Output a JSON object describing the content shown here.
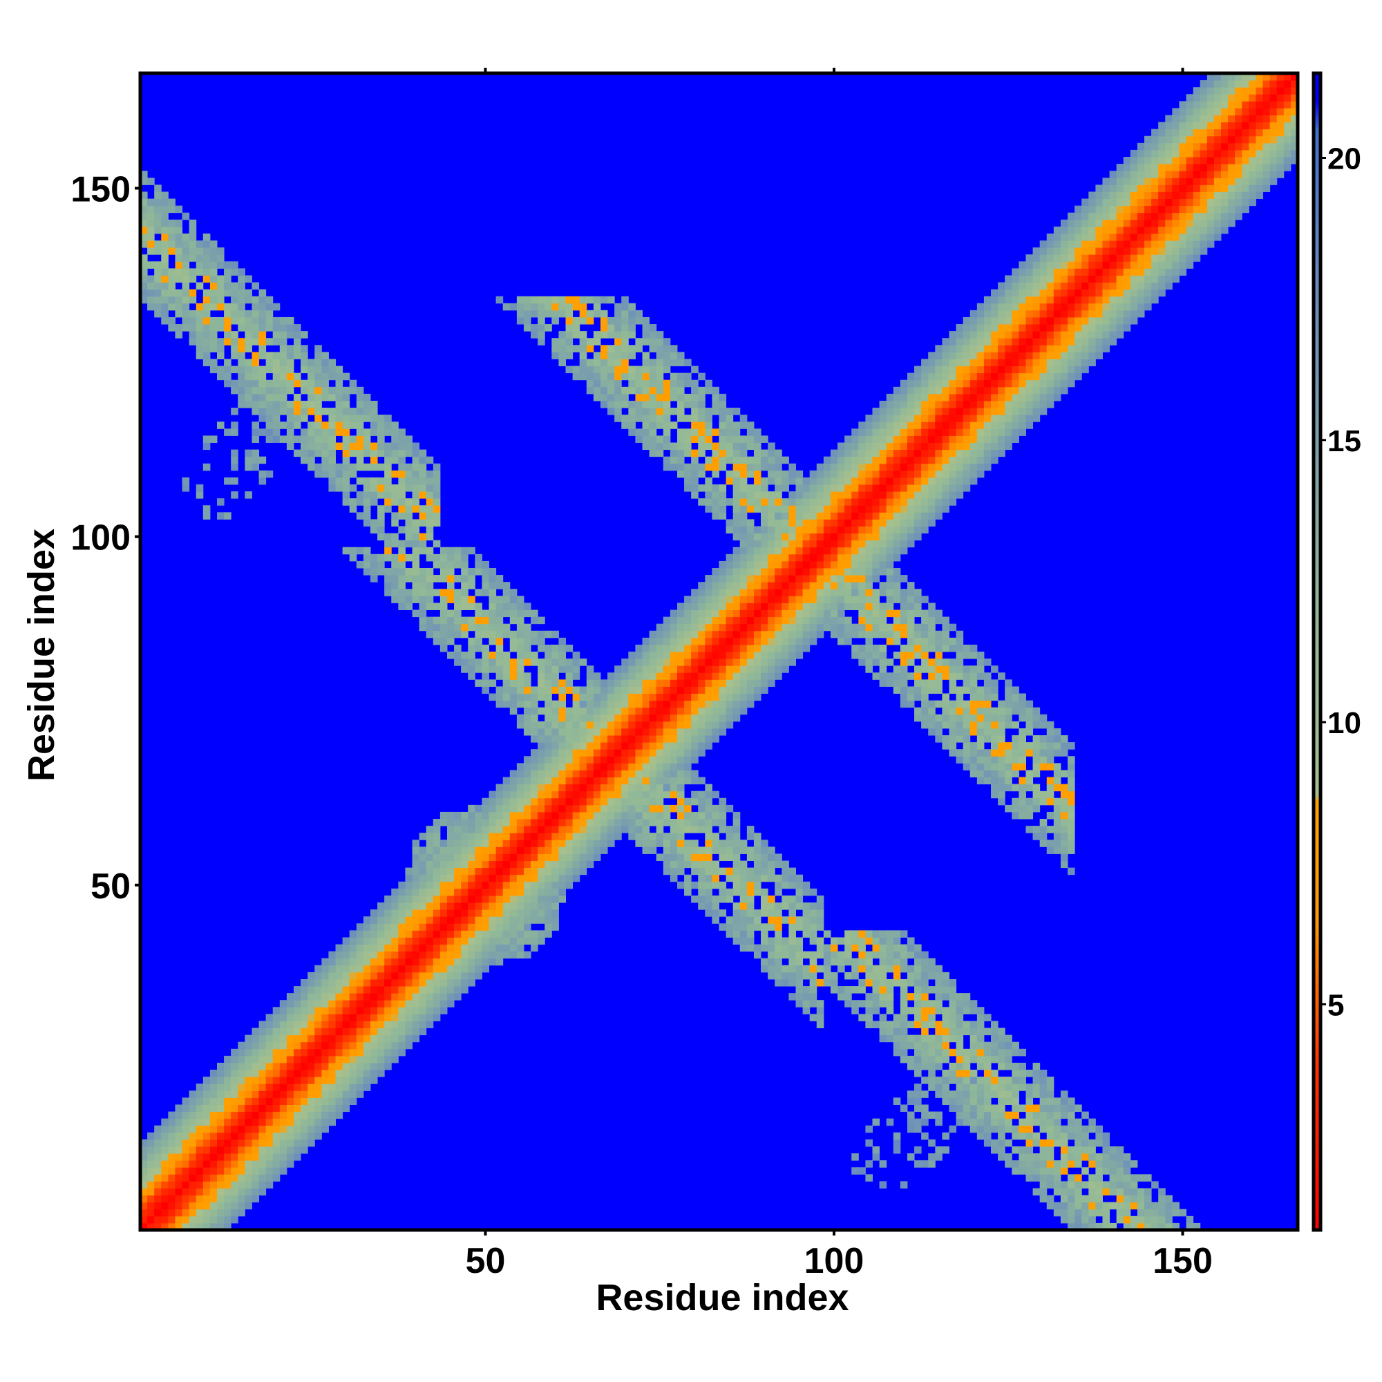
{
  "chart_data": {
    "type": "heatmap",
    "title": "",
    "xlabel": "Residue index",
    "ylabel": "Residue index",
    "xlim": [
      1,
      166
    ],
    "ylim": [
      1,
      166
    ],
    "x_ticks": [
      50,
      100,
      150
    ],
    "y_ticks": [
      50,
      100,
      150
    ],
    "grid": false,
    "value_description": "pairwise residue distance matrix, symmetric, colored by distance",
    "colorbar": {
      "min": 1,
      "max": 21.5,
      "ticks": [
        5,
        10,
        15,
        20
      ],
      "stops": [
        {
          "value": 1,
          "color": "#ff0000"
        },
        {
          "value": 4,
          "color": "#ff3300"
        },
        {
          "value": 6.5,
          "color": "#ff9900"
        },
        {
          "value": 8.6,
          "color": "#ffa000"
        },
        {
          "value": 8.7,
          "color": "#a8c08c"
        },
        {
          "value": 12,
          "color": "#90b898"
        },
        {
          "value": 18,
          "color": "#6688c0"
        },
        {
          "value": 20.5,
          "color": "#4070d0"
        },
        {
          "value": 21,
          "color": "#0000ff"
        }
      ]
    },
    "background_value": 21.5,
    "diagonal_band": {
      "center_value": 1,
      "ramp_per_residue": 1.3,
      "max_offset": 12
    },
    "features": [
      {
        "kind": "antiparallel_band",
        "x_range": [
          1,
          42
        ],
        "anti_sum": 144,
        "half_width": 4.5
      },
      {
        "kind": "blob",
        "center": [
          48,
          52
        ],
        "radius": 9
      },
      {
        "kind": "antiparallel_band",
        "x_range": [
          61,
          97
        ],
        "anti_sum": 137,
        "half_width": 4.5
      },
      {
        "kind": "antiparallel_band",
        "x_range": [
          100,
          133
        ],
        "anti_sum": 195,
        "half_width": 4.5
      },
      {
        "kind": "sparse_patch",
        "x_range": [
          7,
          22
        ],
        "y_range": [
          103,
          120
        ]
      },
      {
        "kind": "sparse_patch",
        "x_range": [
          103,
          120
        ],
        "y_range": [
          7,
          22
        ]
      }
    ]
  }
}
